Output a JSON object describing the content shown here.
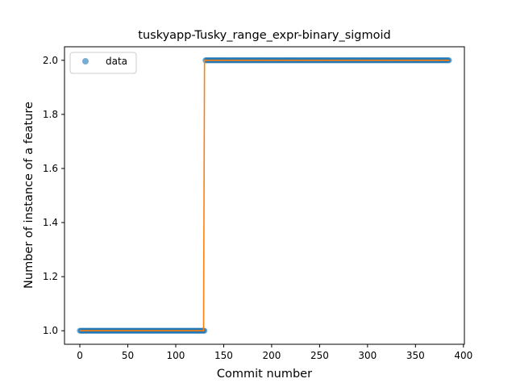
{
  "chart_data": {
    "type": "scatter",
    "title": "tuskyapp-Tusky_range_expr-binary_sigmoid",
    "xlabel": "Commit number",
    "ylabel": "Number of instance of a feature",
    "xlim": [
      -16,
      401
    ],
    "ylim": [
      0.95,
      2.05
    ],
    "x_ticks": [
      0,
      50,
      100,
      150,
      200,
      250,
      300,
      350,
      400
    ],
    "y_ticks": [
      1.0,
      1.2,
      1.4,
      1.6,
      1.8,
      2.0
    ],
    "x_tick_labels": [
      "0",
      "50",
      "100",
      "150",
      "200",
      "250",
      "300",
      "350",
      "400"
    ],
    "y_tick_labels": [
      "1.0",
      "1.2",
      "1.4",
      "1.6",
      "1.8",
      "2.0"
    ],
    "grid": false,
    "legend_position": "top-left",
    "series": [
      {
        "name": "data",
        "kind": "markers",
        "color": "#1f77b4",
        "segments": [
          {
            "x_start": 0,
            "x_end": 130,
            "y": 1.0
          },
          {
            "x_start": 131,
            "x_end": 385,
            "y": 2.0
          }
        ]
      },
      {
        "kind": "line",
        "color": "#ff7f0e",
        "x": [
          0,
          129,
          130,
          385
        ],
        "y": [
          1.0,
          1.0,
          2.0,
          2.0
        ]
      }
    ]
  }
}
